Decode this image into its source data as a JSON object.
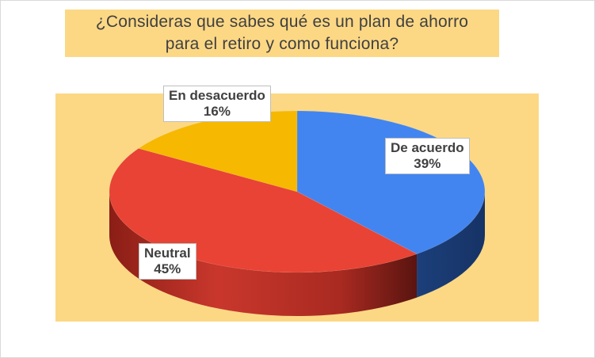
{
  "chart_data": {
    "type": "pie",
    "title": "¿Consideras que sabes qué es un plan de ahorro para el retiro y como funciona?",
    "title_lines": [
      "¿Consideras que sabes qué es un plan de ahorro",
      "para el retiro y como funciona?"
    ],
    "slices": [
      {
        "label": "De acuerdo",
        "value": 39,
        "display": "39%",
        "color": "#4285f0"
      },
      {
        "label": "Neutral",
        "value": 45,
        "display": "45%",
        "color": "#e84335"
      },
      {
        "label": "En desacuerdo",
        "value": 16,
        "display": "16%",
        "color": "#f6b800"
      }
    ],
    "style": "3d-pie",
    "background_color": "#fcd885"
  }
}
